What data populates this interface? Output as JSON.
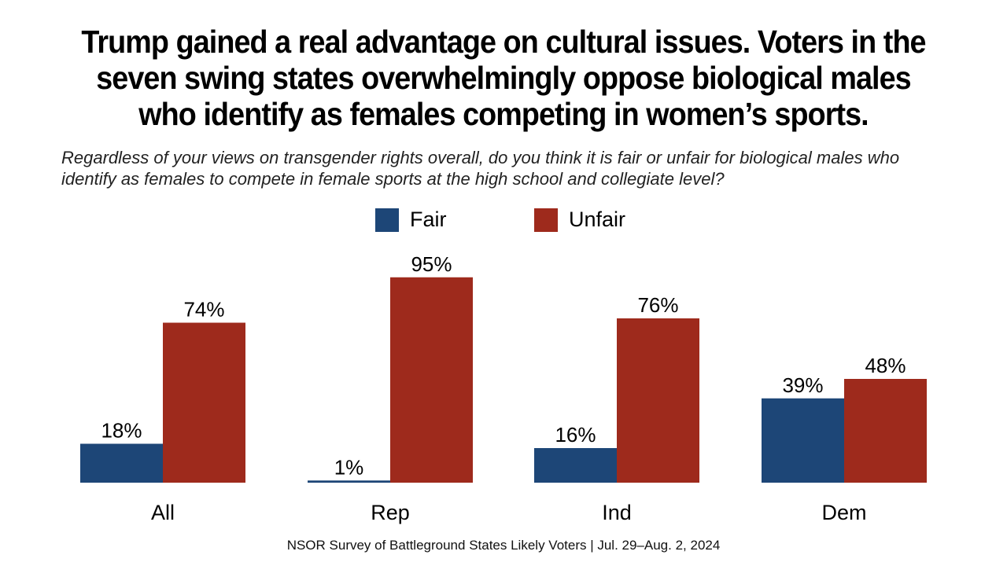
{
  "headline": "Trump gained a real advantage on cultural issues. Voters in the seven swing states overwhelmingly oppose biological males who identify as females competing in women’s sports.",
  "question": "Regardless of your views on transgender rights overall, do you think it is fair or unfair for biological males who identify as females to compete in female sports at the high school and collegiate level?",
  "source": "NSOR Survey of Battleground States Likely Voters | Jul. 29–Aug. 2, 2024",
  "colors": {
    "fair": "#1d4677",
    "unfair": "#9e2a1c"
  },
  "chart_data": {
    "type": "bar",
    "categories": [
      "All",
      "Rep",
      "Ind",
      "Dem"
    ],
    "series": [
      {
        "name": "Fair",
        "values": [
          18,
          1,
          16,
          39
        ]
      },
      {
        "name": "Unfair",
        "values": [
          74,
          95,
          76,
          48
        ]
      }
    ],
    "value_suffix": "%",
    "ylim": [
      0,
      100
    ],
    "grid": false,
    "legend": "top-center"
  }
}
